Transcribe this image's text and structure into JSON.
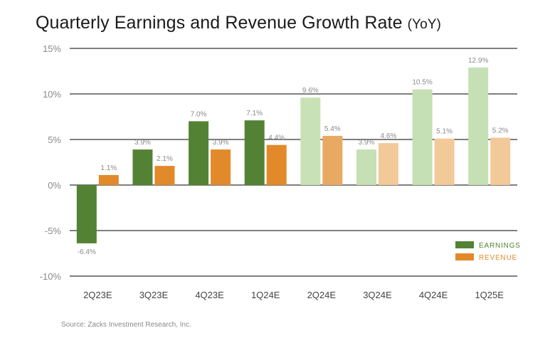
{
  "title": "Quarterly Earnings and Revenue Growth Rate",
  "title_suffix": "(YoY)",
  "source": "Source: Zacks Investment Research, Inc.",
  "chart_data": {
    "type": "bar",
    "title": "Quarterly Earnings and Revenue Growth Rate (YoY)",
    "categories": [
      "2Q23E",
      "3Q23E",
      "4Q23E",
      "1Q24E",
      "2Q24E",
      "3Q24E",
      "4Q24E",
      "1Q25E"
    ],
    "series": [
      {
        "name": "EARNINGS",
        "values": [
          -6.4,
          3.9,
          7.0,
          7.1,
          9.6,
          3.9,
          10.5,
          12.9
        ],
        "labels": [
          "-6.4%",
          "3.9%",
          "7.0%",
          "7.1%",
          "9.6%",
          "3.9%",
          "10.5%",
          "12.9%"
        ],
        "color": "#548235",
        "projected_color": "#c5e0b4"
      },
      {
        "name": "REVENUE",
        "values": [
          1.1,
          2.1,
          3.9,
          4.4,
          5.4,
          4.6,
          5.1,
          5.2
        ],
        "labels": [
          "1.1%",
          "2.1%",
          "3.9%",
          "4.4%",
          "5.4%",
          "4.6%",
          "5.1%",
          "5.2%"
        ],
        "color": "#e2892a",
        "projected_color": "#f2c998"
      }
    ],
    "highlight": {
      "category": "2Q24E",
      "earnings_color": "#c9e2b5",
      "revenue_color": "#e9a963"
    },
    "projected_from_index": 4,
    "yticks": [
      "15%",
      "10%",
      "5%",
      "0%",
      "-5%",
      "-10%"
    ],
    "ytick_values": [
      15,
      10,
      5,
      0,
      -5,
      -10
    ],
    "ylim": [
      -10,
      15
    ],
    "grid": true,
    "legend_position": "bottom-right",
    "legend": [
      {
        "label": "EARNINGS",
        "color": "#548235"
      },
      {
        "label": "REVENUE",
        "color": "#e2892a"
      }
    ]
  }
}
